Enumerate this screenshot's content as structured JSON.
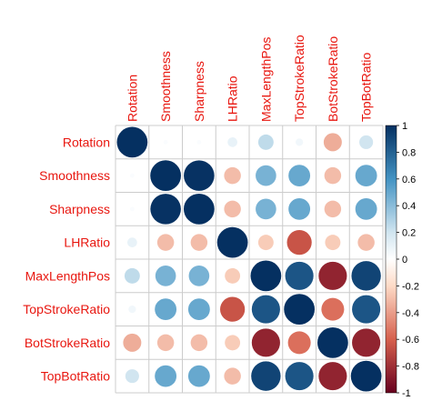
{
  "chart_data": {
    "type": "heatmap",
    "variables": [
      "Rotation",
      "Smoothness",
      "Sharpness",
      "LHRatio",
      "MaxLengthPos",
      "TopStrokeRatio",
      "BotStrokeRatio",
      "TopBotRatio"
    ],
    "matrix": [
      [
        1.0,
        0.02,
        0.02,
        0.1,
        0.25,
        0.06,
        -0.35,
        0.2
      ],
      [
        0.02,
        1.0,
        0.99,
        -0.3,
        0.45,
        0.5,
        -0.3,
        0.5
      ],
      [
        0.02,
        0.99,
        1.0,
        -0.3,
        0.45,
        0.5,
        -0.3,
        0.5
      ],
      [
        0.1,
        -0.3,
        -0.3,
        1.0,
        -0.25,
        -0.65,
        -0.25,
        -0.3
      ],
      [
        0.25,
        0.45,
        0.45,
        -0.25,
        1.0,
        0.85,
        -0.85,
        0.92
      ],
      [
        0.06,
        0.5,
        0.5,
        -0.65,
        0.85,
        1.0,
        -0.55,
        0.85
      ],
      [
        -0.35,
        -0.3,
        -0.3,
        -0.25,
        -0.85,
        -0.55,
        1.0,
        -0.85
      ],
      [
        0.2,
        0.5,
        0.5,
        -0.3,
        0.92,
        0.85,
        -0.85,
        1.0
      ]
    ],
    "colorbar": {
      "range": [
        -1,
        1
      ],
      "ticks": [
        "1",
        "0.8",
        "0.6",
        "0.4",
        "0.2",
        "0",
        "-0.2",
        "-0.4",
        "-0.6",
        "-0.8",
        "-1"
      ],
      "colors": {
        "neg_strong": "#67001f",
        "neg_mid": "#d6604d",
        "neg_light": "#fddbc7",
        "zero": "#ffffff",
        "pos_light": "#d1e5f0",
        "pos_mid": "#4393c3",
        "pos_strong": "#053061"
      }
    },
    "label_color": "#e8160f",
    "grid_color": "#cccccc"
  }
}
